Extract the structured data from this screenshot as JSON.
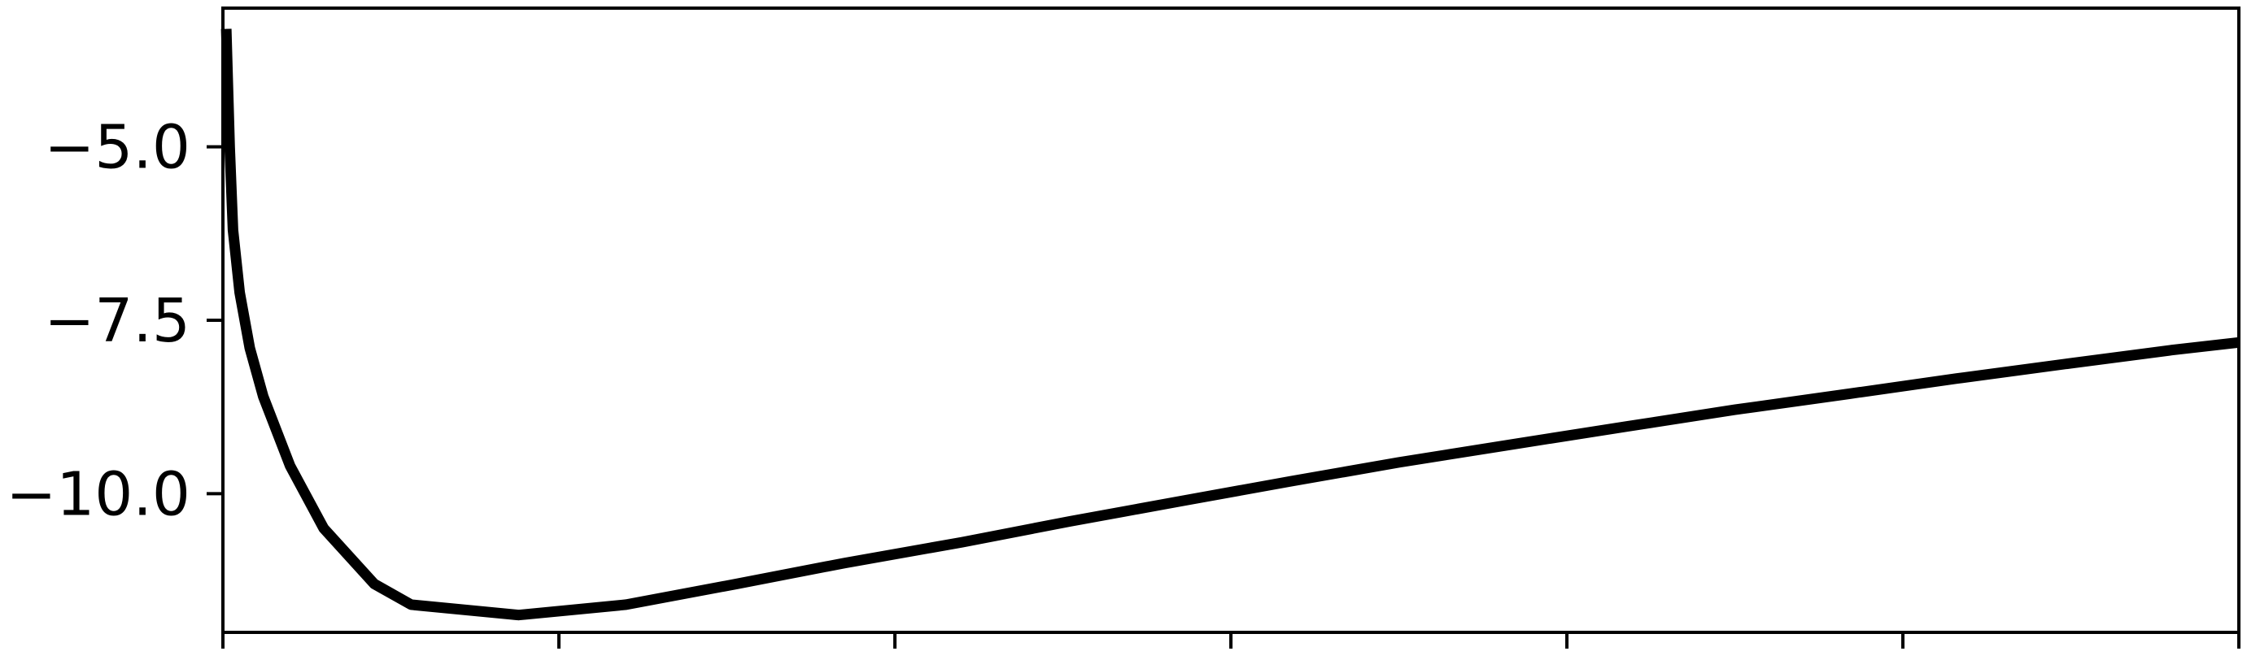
{
  "chart_data": {
    "type": "line",
    "title": "",
    "xlabel": "",
    "ylabel": "",
    "grid": false,
    "xlim": [
      0,
      6
    ],
    "ylim": [
      -12.0,
      -3.0
    ],
    "x_ticks": [
      0,
      1,
      2,
      3,
      4,
      5,
      6
    ],
    "y_ticks": [
      -5.0,
      -7.5,
      -10.0
    ],
    "y_tick_labels": [
      "−5.0",
      "−7.5",
      "−10.0"
    ],
    "series": [
      {
        "color": "#000000",
        "x": [
          0.01,
          0.02,
          0.03,
          0.05,
          0.08,
          0.12,
          0.2,
          0.3,
          0.45,
          0.56,
          0.88,
          1.2,
          1.53,
          1.85,
          2.2,
          2.52,
          2.86,
          3.18,
          3.5,
          3.85,
          4.18,
          4.5,
          4.84,
          5.16,
          5.5,
          5.8,
          6.0
        ],
        "y": [
          -3.3,
          -5.0,
          -6.2,
          -7.1,
          -7.9,
          -8.6,
          -9.6,
          -10.5,
          -11.3,
          -11.6,
          -11.75,
          -11.6,
          -11.3,
          -11.0,
          -10.7,
          -10.4,
          -10.1,
          -9.82,
          -9.55,
          -9.28,
          -9.03,
          -8.79,
          -8.56,
          -8.34,
          -8.12,
          -7.93,
          -7.82
        ]
      }
    ]
  }
}
